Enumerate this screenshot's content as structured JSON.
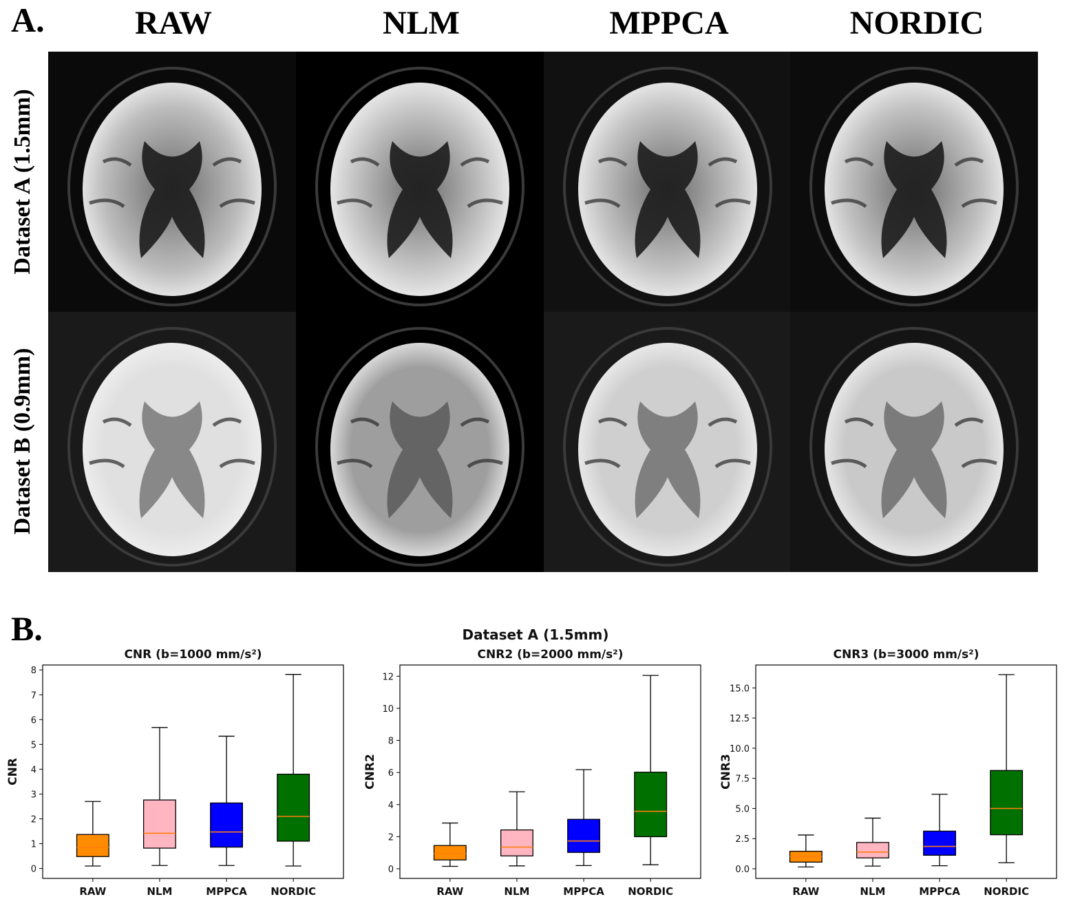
{
  "panel_a": {
    "label": "A.",
    "columns": [
      "RAW",
      "NLM",
      "MPPCA",
      "NORDIC"
    ],
    "rows": [
      "Dataset A (1.5mm)",
      "Dataset B (0.9mm)"
    ]
  },
  "panel_b": {
    "label": "B.",
    "suptitle": "Dataset A (1.5mm)"
  },
  "colors": {
    "RAW": "#ff8c00",
    "NLM": "#ffb6c1",
    "MPPCA": "#0000ff",
    "NORDIC": "#007000",
    "median": "#ff7f0e"
  },
  "chart_data": [
    {
      "type": "box",
      "title": "CNR (b=1000 mm/s²)",
      "ylabel": "CNR",
      "xlabel": "",
      "categories": [
        "RAW",
        "NLM",
        "MPPCA",
        "NORDIC"
      ],
      "ylim": [
        -0.4,
        8.2
      ],
      "yticks": [
        0,
        1,
        2,
        3,
        4,
        5,
        6,
        7,
        8
      ],
      "ytick_labels": [
        "0",
        "1",
        "2",
        "3",
        "4",
        "5",
        "6",
        "7",
        "8"
      ],
      "boxes": [
        {
          "whislo": 0.1,
          "q1": 0.48,
          "med": 0.85,
          "q3": 1.37,
          "whishi": 2.7
        },
        {
          "whislo": 0.12,
          "q1": 0.82,
          "med": 1.42,
          "q3": 2.76,
          "whishi": 5.68
        },
        {
          "whislo": 0.12,
          "q1": 0.86,
          "med": 1.47,
          "q3": 2.64,
          "whishi": 5.33
        },
        {
          "whislo": 0.1,
          "q1": 1.1,
          "med": 2.1,
          "q3": 3.8,
          "whishi": 7.82
        }
      ]
    },
    {
      "type": "box",
      "title": "CNR2 (b=2000 mm/s²)",
      "ylabel": "CNR2",
      "xlabel": "",
      "categories": [
        "RAW",
        "NLM",
        "MPPCA",
        "NORDIC"
      ],
      "ylim": [
        -0.6,
        12.7
      ],
      "yticks": [
        0,
        2,
        4,
        6,
        8,
        10,
        12
      ],
      "ytick_labels": [
        "0",
        "2",
        "4",
        "6",
        "8",
        "10",
        "12"
      ],
      "boxes": [
        {
          "whislo": 0.15,
          "q1": 0.55,
          "med": 0.95,
          "q3": 1.45,
          "whishi": 2.85
        },
        {
          "whislo": 0.18,
          "q1": 0.8,
          "med": 1.35,
          "q3": 2.42,
          "whishi": 4.8
        },
        {
          "whislo": 0.2,
          "q1": 1.02,
          "med": 1.73,
          "q3": 3.08,
          "whishi": 6.18
        },
        {
          "whislo": 0.25,
          "q1": 2.0,
          "med": 3.58,
          "q3": 6.02,
          "whishi": 12.05
        }
      ]
    },
    {
      "type": "box",
      "title": "CNR3 (b=3000 mm/s²)",
      "ylabel": "CNR3",
      "xlabel": "",
      "categories": [
        "RAW",
        "NLM",
        "MPPCA",
        "NORDIC"
      ],
      "ylim": [
        -0.8,
        16.9
      ],
      "yticks": [
        0,
        2.5,
        5,
        7.5,
        10,
        12.5,
        15
      ],
      "ytick_labels": [
        "0.0",
        "2.5",
        "5.0",
        "7.5",
        "10.0",
        "12.5",
        "15.0"
      ],
      "boxes": [
        {
          "whislo": 0.15,
          "q1": 0.55,
          "med": 1.0,
          "q3": 1.45,
          "whishi": 2.8
        },
        {
          "whislo": 0.22,
          "q1": 0.9,
          "med": 1.38,
          "q3": 2.18,
          "whishi": 4.2
        },
        {
          "whislo": 0.25,
          "q1": 1.12,
          "med": 1.85,
          "q3": 3.12,
          "whishi": 6.18
        },
        {
          "whislo": 0.5,
          "q1": 2.82,
          "med": 5.0,
          "q3": 8.15,
          "whishi": 16.1
        }
      ]
    }
  ]
}
